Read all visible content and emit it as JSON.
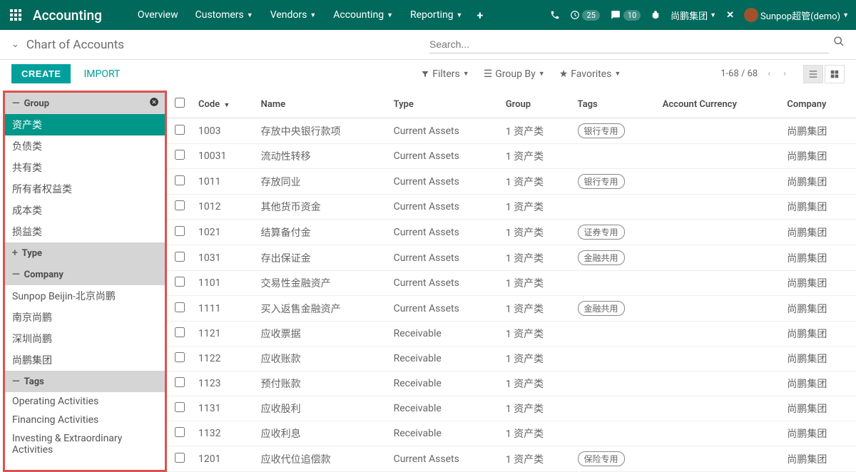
{
  "topnav": {
    "app_title": "Accounting",
    "menu": [
      {
        "label": "Overview",
        "dropdown": false
      },
      {
        "label": "Customers",
        "dropdown": true
      },
      {
        "label": "Vendors",
        "dropdown": true
      },
      {
        "label": "Accounting",
        "dropdown": true
      },
      {
        "label": "Reporting",
        "dropdown": true
      }
    ],
    "activity_count": "25",
    "msg_count": "10",
    "company": "尚鹏集团",
    "user": "Sunpop超管(demo)"
  },
  "breadcrumb": {
    "title": "Chart of Accounts"
  },
  "search": {
    "placeholder": "Search..."
  },
  "actions": {
    "create": "CREATE",
    "import": "IMPORT"
  },
  "filters": {
    "filters": "Filters",
    "groupby": "Group By",
    "favorites": "Favorites"
  },
  "pager": {
    "range": "1-68 / 68"
  },
  "sidebar": {
    "group": {
      "title": "Group",
      "items": [
        "资产类",
        "负债类",
        "共有类",
        "所有者权益类",
        "成本类",
        "损益类"
      ],
      "active_index": 0
    },
    "type": {
      "title": "Type"
    },
    "company": {
      "title": "Company",
      "items": [
        "Sunpop Beijin-北京尚鹏",
        "南京尚鹏",
        "深圳尚鹏",
        "尚鹏集团"
      ]
    },
    "tags": {
      "title": "Tags",
      "items": [
        "Operating Activities",
        "Financing Activities",
        "Investing & Extraordinary Activities"
      ]
    }
  },
  "table": {
    "headers": {
      "code": "Code",
      "name": "Name",
      "type": "Type",
      "group": "Group",
      "tags": "Tags",
      "currency": "Account Currency",
      "company": "Company"
    },
    "rows": [
      {
        "code": "1003",
        "name": "存放中央银行款项",
        "type": "Current Assets",
        "group": "1 资产类",
        "tag": "银行专用",
        "company": "尚鹏集团"
      },
      {
        "code": "10031",
        "name": "流动性转移",
        "type": "Current Assets",
        "group": "1 资产类",
        "tag": "",
        "company": "尚鹏集团"
      },
      {
        "code": "1011",
        "name": "存放同业",
        "type": "Current Assets",
        "group": "1 资产类",
        "tag": "银行专用",
        "company": "尚鹏集团"
      },
      {
        "code": "1012",
        "name": "其他货币资金",
        "type": "Current Assets",
        "group": "1 资产类",
        "tag": "",
        "company": "尚鹏集团"
      },
      {
        "code": "1021",
        "name": "结算备付金",
        "type": "Current Assets",
        "group": "1 资产类",
        "tag": "证券专用",
        "company": "尚鹏集团"
      },
      {
        "code": "1031",
        "name": "存出保证金",
        "type": "Current Assets",
        "group": "1 资产类",
        "tag": "金融共用",
        "company": "尚鹏集团"
      },
      {
        "code": "1101",
        "name": "交易性金融资产",
        "type": "Current Assets",
        "group": "1 资产类",
        "tag": "",
        "company": "尚鹏集团"
      },
      {
        "code": "1111",
        "name": "买入返售金融资产",
        "type": "Current Assets",
        "group": "1 资产类",
        "tag": "金融共用",
        "company": "尚鹏集团"
      },
      {
        "code": "1121",
        "name": "应收票据",
        "type": "Receivable",
        "group": "1 资产类",
        "tag": "",
        "company": "尚鹏集团"
      },
      {
        "code": "1122",
        "name": "应收账款",
        "type": "Receivable",
        "group": "1 资产类",
        "tag": "",
        "company": "尚鹏集团"
      },
      {
        "code": "1123",
        "name": "预付账款",
        "type": "Receivable",
        "group": "1 资产类",
        "tag": "",
        "company": "尚鹏集团"
      },
      {
        "code": "1131",
        "name": "应收股利",
        "type": "Receivable",
        "group": "1 资产类",
        "tag": "",
        "company": "尚鹏集团"
      },
      {
        "code": "1132",
        "name": "应收利息",
        "type": "Receivable",
        "group": "1 资产类",
        "tag": "",
        "company": "尚鹏集团"
      },
      {
        "code": "1201",
        "name": "应收代位追偿款",
        "type": "Current Assets",
        "group": "1 资产类",
        "tag": "保险专用",
        "company": "尚鹏集团"
      }
    ]
  }
}
